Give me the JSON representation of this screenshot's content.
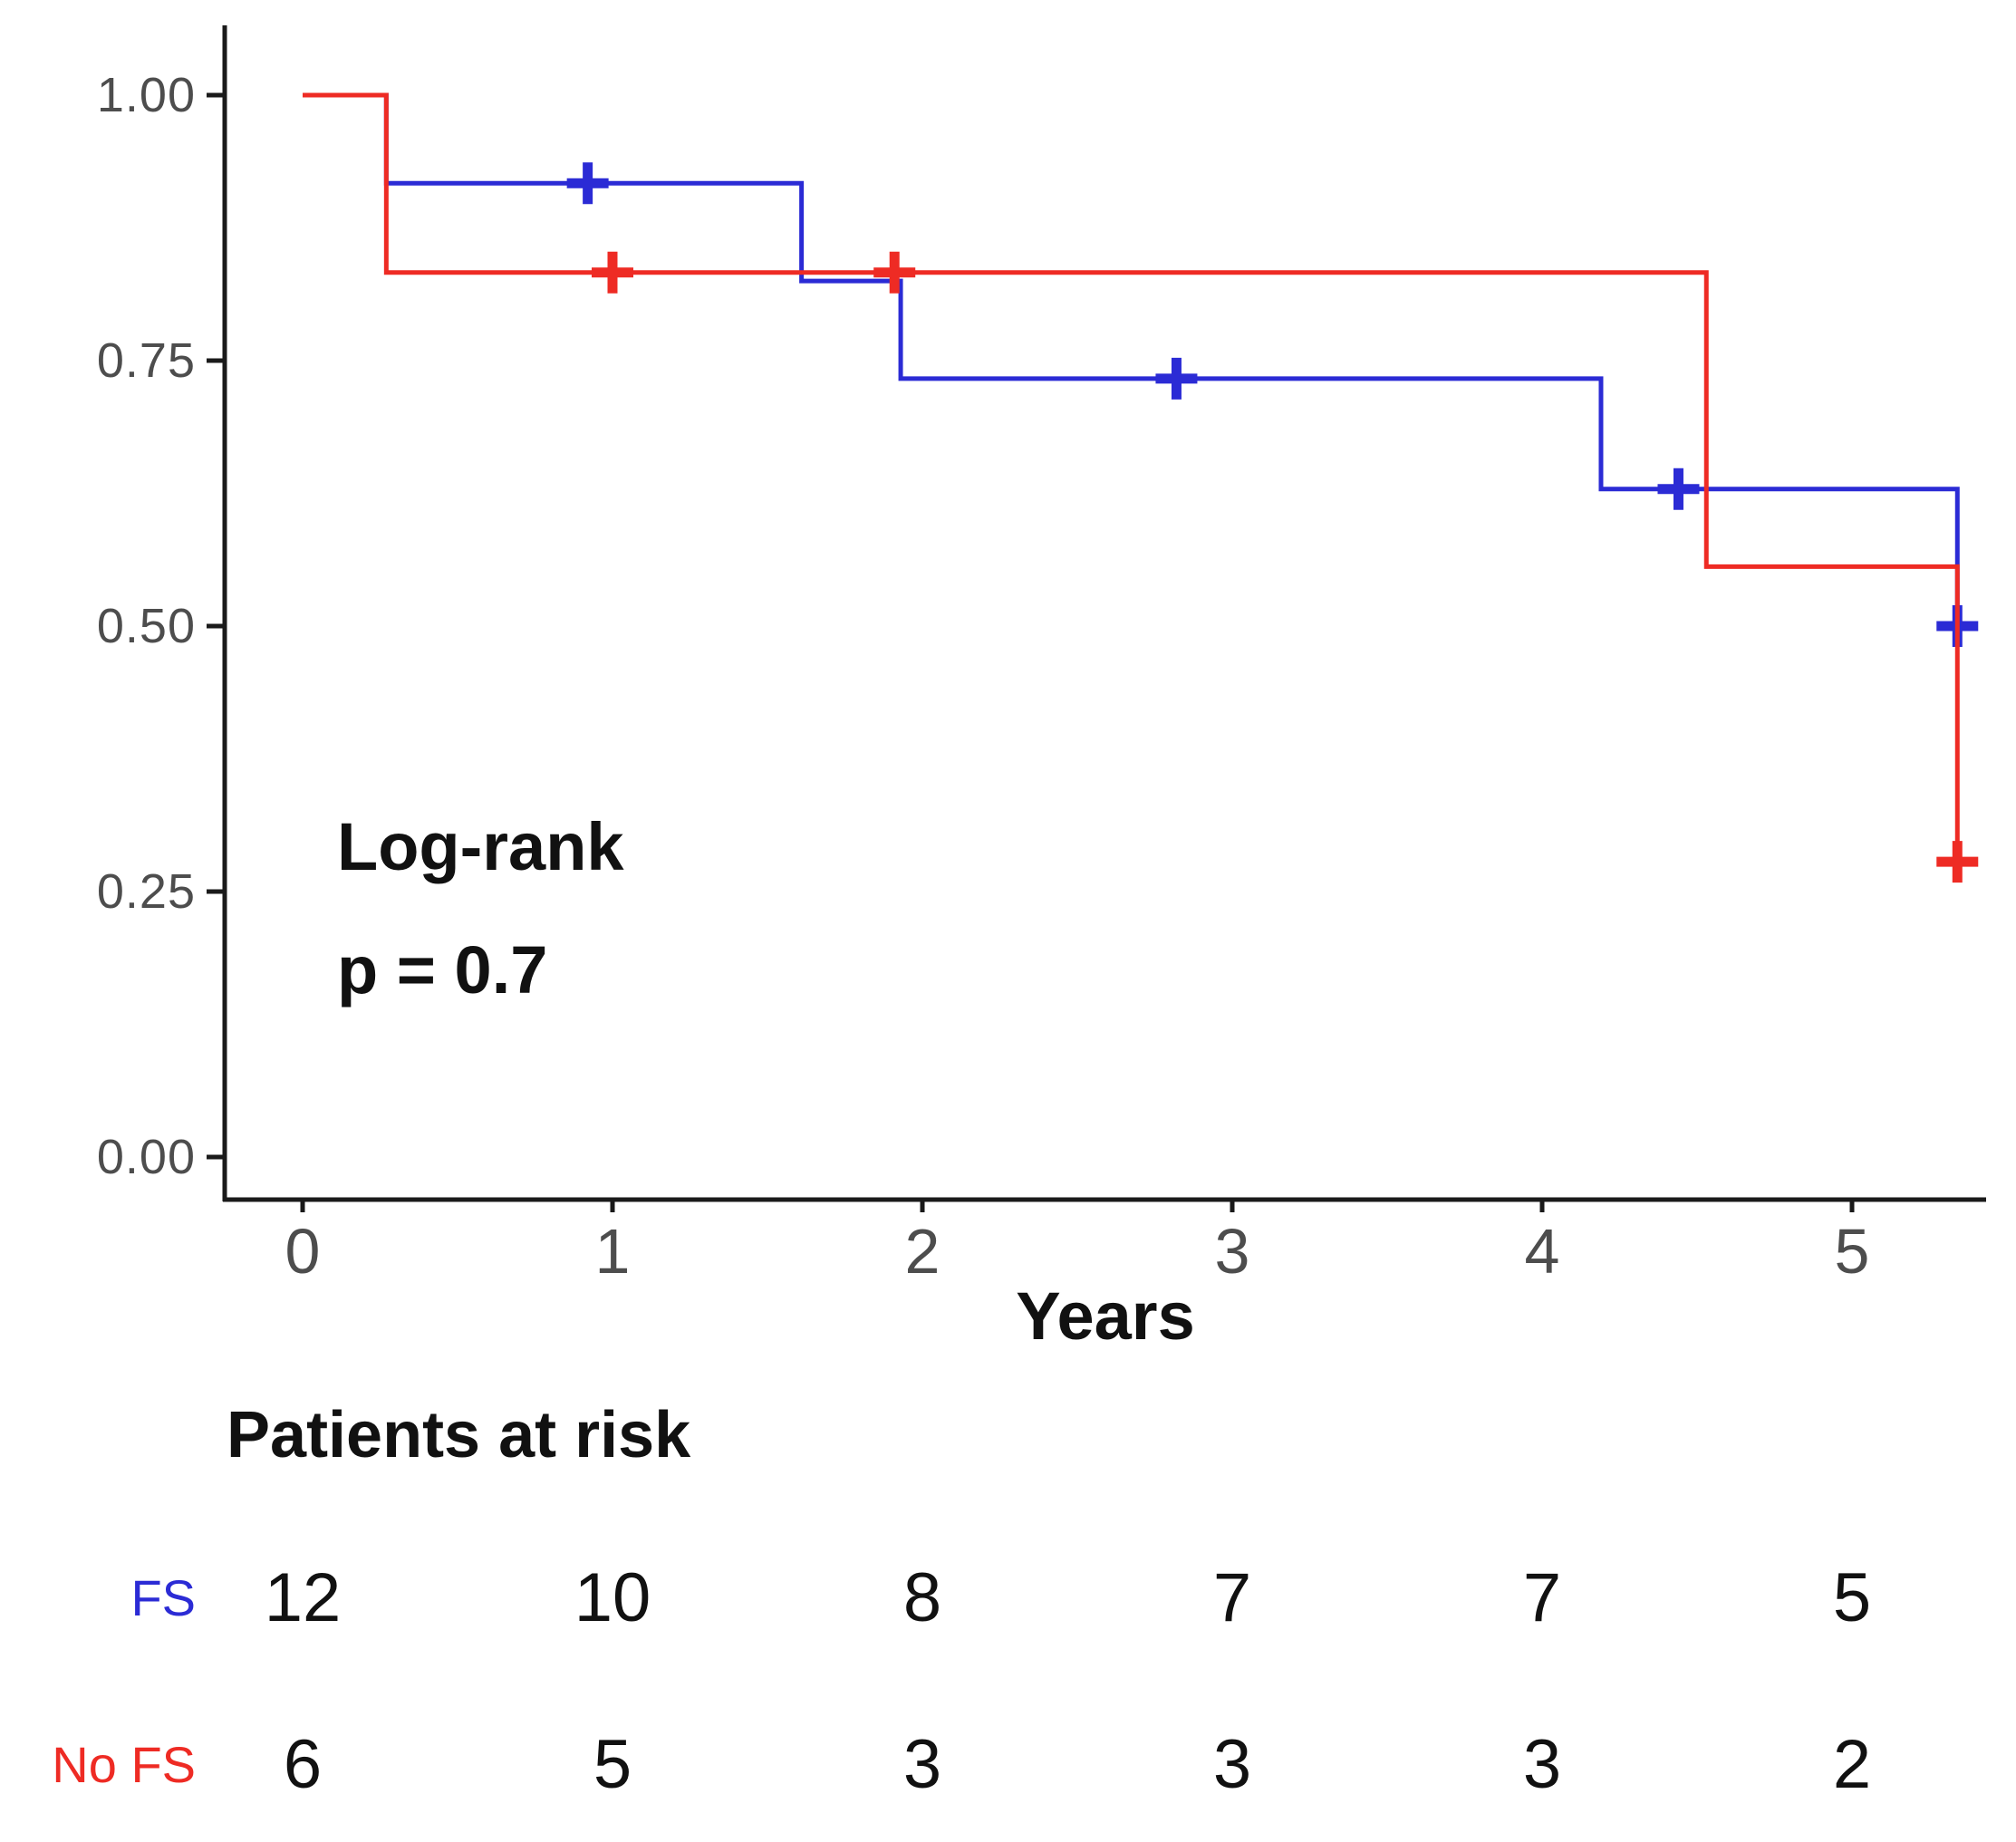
{
  "chart_data": {
    "type": "line",
    "subtype": "kaplan-meier-step",
    "title": "",
    "xlabel": "Years",
    "ylabel": "",
    "xlim": [
      0,
      5.43
    ],
    "ylim": [
      0,
      1
    ],
    "grid": false,
    "legend_position": "none",
    "annotation": {
      "line1": "Log-rank",
      "line2": "p = 0.7"
    },
    "x_ticks": [
      {
        "label": "0",
        "t": 0
      },
      {
        "label": "1",
        "t": 1
      },
      {
        "label": "2",
        "t": 2
      },
      {
        "label": "3",
        "t": 3
      },
      {
        "label": "4",
        "t": 4
      },
      {
        "label": "5",
        "t": 5
      }
    ],
    "y_ticks": [
      {
        "label": "0.00",
        "v": 0
      },
      {
        "label": "0.25",
        "v": 0.25
      },
      {
        "label": "0.50",
        "v": 0.5
      },
      {
        "label": "0.75",
        "v": 0.75
      },
      {
        "label": "1.00",
        "v": 1
      }
    ],
    "series": [
      {
        "name": "FS",
        "color": "#2b2bd5",
        "points": [
          [
            0,
            1.0
          ],
          [
            0.27,
            1.0
          ],
          [
            0.27,
            0.917
          ],
          [
            1.61,
            0.917
          ],
          [
            1.61,
            0.825
          ],
          [
            1.93,
            0.825
          ],
          [
            1.93,
            0.733
          ],
          [
            4.19,
            0.733
          ],
          [
            4.19,
            0.629
          ],
          [
            5.34,
            0.629
          ],
          [
            5.34,
            0.5
          ]
        ],
        "censor_marks": [
          [
            0.92,
            0.917
          ],
          [
            2.82,
            0.733
          ],
          [
            4.44,
            0.629
          ],
          [
            5.34,
            0.5
          ]
        ]
      },
      {
        "name": "No FS",
        "color": "#ee2b24",
        "points": [
          [
            0,
            1.0
          ],
          [
            0.27,
            1.0
          ],
          [
            0.27,
            0.833
          ],
          [
            4.53,
            0.833
          ],
          [
            4.53,
            0.556
          ],
          [
            5.34,
            0.556
          ],
          [
            5.34,
            0.278
          ]
        ],
        "censor_marks": [
          [
            1.0,
            0.833
          ],
          [
            1.91,
            0.833
          ],
          [
            5.34,
            0.278
          ]
        ]
      }
    ],
    "risk_table": {
      "title": "Patients at risk",
      "columns_at_years": [
        0,
        1,
        2,
        3,
        4,
        5
      ],
      "rows": [
        {
          "label": "FS",
          "color": "#2b2bd5",
          "values": [
            "12",
            "10",
            "8",
            "7",
            "7",
            "5"
          ]
        },
        {
          "label": "No FS",
          "color": "#ee2b24",
          "values": [
            "6",
            "5",
            "3",
            "3",
            "3",
            "2"
          ]
        }
      ]
    },
    "colors": {
      "axis_line": "#1a1a1a",
      "tick_text": "#4d4d4d",
      "label_text": "#111111"
    }
  }
}
